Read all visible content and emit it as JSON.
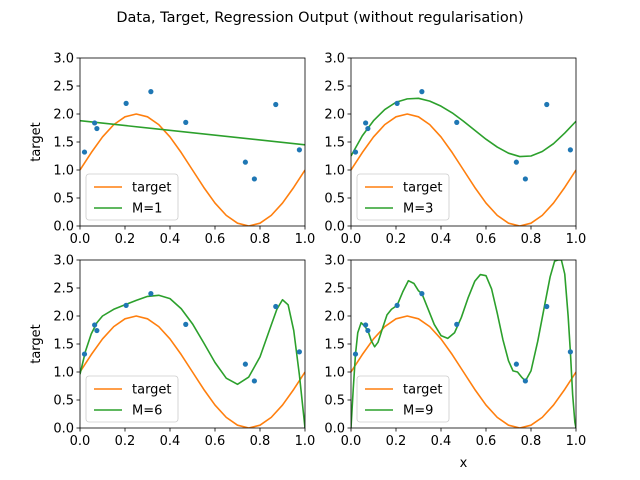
{
  "figure": {
    "title": "Data, Target, Regression Output (without regularisation)"
  },
  "colors": {
    "points": "#1f77b4",
    "target": "#ff7f0e",
    "fit": "#2ca02c"
  },
  "chart_data": [
    {
      "type": "line",
      "xlabel": "",
      "ylabel": "target",
      "xlim": [
        0,
        1
      ],
      "ylim": [
        0,
        3
      ],
      "xticks": [
        "0.0",
        "0.2",
        "0.4",
        "0.6",
        "0.8",
        "1.0"
      ],
      "yticks": [
        "0.0",
        "0.5",
        "1.0",
        "1.5",
        "2.0",
        "2.5",
        "3.0"
      ],
      "legend_position": "lower-left",
      "data_points": {
        "x": [
          0.02,
          0.065,
          0.075,
          0.205,
          0.315,
          0.47,
          0.735,
          0.775,
          0.87,
          0.975
        ],
        "y": [
          1.32,
          1.84,
          1.74,
          2.19,
          2.4,
          1.85,
          1.14,
          0.84,
          2.17,
          1.36
        ]
      },
      "series": [
        {
          "name": "target",
          "x": [
            0.0,
            0.05,
            0.1,
            0.15,
            0.2,
            0.25,
            0.3,
            0.35,
            0.4,
            0.45,
            0.5,
            0.55,
            0.6,
            0.65,
            0.7,
            0.75,
            0.8,
            0.85,
            0.9,
            0.95,
            1.0
          ],
          "y": [
            1.0,
            1.31,
            1.59,
            1.81,
            1.95,
            2.0,
            1.95,
            1.81,
            1.59,
            1.31,
            1.0,
            0.69,
            0.41,
            0.19,
            0.05,
            0.0,
            0.05,
            0.19,
            0.41,
            0.69,
            1.0
          ]
        },
        {
          "name": "M=1",
          "x": [
            0.0,
            1.0
          ],
          "y": [
            1.88,
            1.45
          ]
        }
      ]
    },
    {
      "type": "line",
      "xlabel": "",
      "ylabel": "",
      "xlim": [
        0,
        1
      ],
      "ylim": [
        0,
        3
      ],
      "xticks": [
        "0.0",
        "0.2",
        "0.4",
        "0.6",
        "0.8",
        "1.0"
      ],
      "yticks": [
        "0.0",
        "0.5",
        "1.0",
        "1.5",
        "2.0",
        "2.5",
        "3.0"
      ],
      "legend_position": "lower-left",
      "data_points": {
        "x": [
          0.02,
          0.065,
          0.075,
          0.205,
          0.315,
          0.47,
          0.735,
          0.775,
          0.87,
          0.975
        ],
        "y": [
          1.32,
          1.84,
          1.74,
          2.19,
          2.4,
          1.85,
          1.14,
          0.84,
          2.17,
          1.36
        ]
      },
      "series": [
        {
          "name": "target",
          "x": [
            0.0,
            0.05,
            0.1,
            0.15,
            0.2,
            0.25,
            0.3,
            0.35,
            0.4,
            0.45,
            0.5,
            0.55,
            0.6,
            0.65,
            0.7,
            0.75,
            0.8,
            0.85,
            0.9,
            0.95,
            1.0
          ],
          "y": [
            1.0,
            1.31,
            1.59,
            1.81,
            1.95,
            2.0,
            1.95,
            1.81,
            1.59,
            1.31,
            1.0,
            0.69,
            0.41,
            0.19,
            0.05,
            0.0,
            0.05,
            0.19,
            0.41,
            0.69,
            1.0
          ]
        },
        {
          "name": "M=3",
          "x": [
            0.0,
            0.05,
            0.1,
            0.15,
            0.2,
            0.25,
            0.3,
            0.35,
            0.4,
            0.45,
            0.5,
            0.55,
            0.6,
            0.65,
            0.7,
            0.75,
            0.8,
            0.85,
            0.9,
            0.95,
            1.0
          ],
          "y": [
            1.25,
            1.61,
            1.88,
            2.08,
            2.21,
            2.27,
            2.28,
            2.23,
            2.14,
            2.02,
            1.87,
            1.71,
            1.55,
            1.41,
            1.3,
            1.24,
            1.25,
            1.33,
            1.47,
            1.66,
            1.87
          ]
        }
      ]
    },
    {
      "type": "line",
      "xlabel": "",
      "ylabel": "target",
      "xlim": [
        0,
        1
      ],
      "ylim": [
        0,
        3
      ],
      "xticks": [
        "0.0",
        "0.2",
        "0.4",
        "0.6",
        "0.8",
        "1.0"
      ],
      "yticks": [
        "0.0",
        "0.5",
        "1.0",
        "1.5",
        "2.0",
        "2.5",
        "3.0"
      ],
      "legend_position": "lower-left",
      "data_points": {
        "x": [
          0.02,
          0.065,
          0.075,
          0.205,
          0.315,
          0.47,
          0.735,
          0.775,
          0.87,
          0.975
        ],
        "y": [
          1.32,
          1.84,
          1.74,
          2.19,
          2.4,
          1.85,
          1.14,
          0.84,
          2.17,
          1.36
        ]
      },
      "series": [
        {
          "name": "target",
          "x": [
            0.0,
            0.05,
            0.1,
            0.15,
            0.2,
            0.25,
            0.3,
            0.35,
            0.4,
            0.45,
            0.5,
            0.55,
            0.6,
            0.65,
            0.7,
            0.75,
            0.8,
            0.85,
            0.9,
            0.95,
            1.0
          ],
          "y": [
            1.0,
            1.31,
            1.59,
            1.81,
            1.95,
            2.0,
            1.95,
            1.81,
            1.59,
            1.31,
            1.0,
            0.69,
            0.41,
            0.19,
            0.05,
            0.0,
            0.05,
            0.19,
            0.41,
            0.69,
            1.0
          ]
        },
        {
          "name": "M=6",
          "x": [
            0.0,
            0.025,
            0.05,
            0.075,
            0.1,
            0.15,
            0.2,
            0.25,
            0.3,
            0.35,
            0.4,
            0.45,
            0.5,
            0.55,
            0.6,
            0.65,
            0.7,
            0.75,
            0.8,
            0.85,
            0.875,
            0.9,
            0.925,
            0.95,
            0.975,
            1.0
          ],
          "y": [
            0.96,
            1.38,
            1.68,
            1.88,
            2.0,
            2.12,
            2.2,
            2.28,
            2.35,
            2.37,
            2.31,
            2.13,
            1.86,
            1.52,
            1.17,
            0.89,
            0.78,
            0.91,
            1.27,
            1.84,
            2.12,
            2.29,
            2.2,
            1.74,
            0.95,
            0.0
          ]
        }
      ]
    },
    {
      "type": "line",
      "xlabel": "x",
      "ylabel": "",
      "xlim": [
        0,
        1
      ],
      "ylim": [
        0,
        3
      ],
      "xticks": [
        "0.0",
        "0.2",
        "0.4",
        "0.6",
        "0.8",
        "1.0"
      ],
      "yticks": [
        "0.0",
        "0.5",
        "1.0",
        "1.5",
        "2.0",
        "2.5",
        "3.0"
      ],
      "legend_position": "lower-left",
      "data_points": {
        "x": [
          0.02,
          0.065,
          0.075,
          0.205,
          0.315,
          0.47,
          0.735,
          0.775,
          0.87,
          0.975
        ],
        "y": [
          1.32,
          1.84,
          1.74,
          2.19,
          2.4,
          1.85,
          1.14,
          0.84,
          2.17,
          1.36
        ]
      },
      "series": [
        {
          "name": "target",
          "x": [
            0.0,
            0.05,
            0.1,
            0.15,
            0.2,
            0.25,
            0.3,
            0.35,
            0.4,
            0.45,
            0.5,
            0.55,
            0.6,
            0.65,
            0.7,
            0.75,
            0.8,
            0.85,
            0.9,
            0.95,
            1.0
          ],
          "y": [
            1.0,
            1.31,
            1.59,
            1.81,
            1.95,
            2.0,
            1.95,
            1.81,
            1.59,
            1.31,
            1.0,
            0.69,
            0.41,
            0.19,
            0.05,
            0.0,
            0.05,
            0.19,
            0.41,
            0.69,
            1.0
          ]
        },
        {
          "name": "M=9",
          "x": [
            0.0,
            0.01,
            0.02,
            0.03,
            0.045,
            0.06,
            0.075,
            0.09,
            0.105,
            0.12,
            0.14,
            0.16,
            0.18,
            0.205,
            0.23,
            0.255,
            0.28,
            0.3,
            0.315,
            0.34,
            0.37,
            0.4,
            0.43,
            0.46,
            0.49,
            0.52,
            0.55,
            0.575,
            0.6,
            0.625,
            0.65,
            0.675,
            0.7,
            0.72,
            0.74,
            0.76,
            0.775,
            0.8,
            0.83,
            0.86,
            0.885,
            0.905,
            0.92,
            0.935,
            0.95,
            0.965,
            0.975,
            0.985,
            0.995,
            1.0
          ],
          "y": [
            0.0,
            0.7,
            1.32,
            1.7,
            1.88,
            1.82,
            1.74,
            1.56,
            1.45,
            1.53,
            1.78,
            2.02,
            2.12,
            2.19,
            2.43,
            2.63,
            2.58,
            2.45,
            2.4,
            2.15,
            1.85,
            1.65,
            1.6,
            1.7,
            1.97,
            2.32,
            2.62,
            2.74,
            2.72,
            2.48,
            2.05,
            1.58,
            1.2,
            1.02,
            1.0,
            0.9,
            0.84,
            1.02,
            1.55,
            2.18,
            2.7,
            2.98,
            3.0,
            3.0,
            2.75,
            2.0,
            1.36,
            0.6,
            0.1,
            0.0
          ]
        }
      ]
    }
  ]
}
